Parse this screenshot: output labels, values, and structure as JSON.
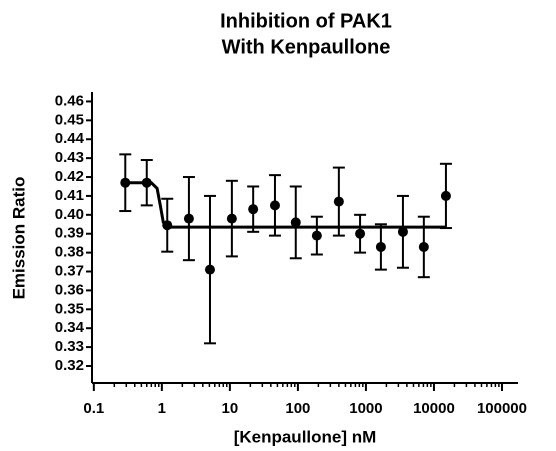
{
  "chart_data": {
    "type": "scatter",
    "title": [
      "Inhibition of PAK1",
      "With Kenpaullone"
    ],
    "x_label": "[Kenpaullone] nM",
    "y_label": "Emission  Ratio",
    "log_x": true,
    "color": "#000000",
    "x": [
      0.29,
      0.6,
      1.2,
      2.5,
      5.1,
      10.7,
      22,
      46,
      93,
      190,
      400,
      820,
      1660,
      3500,
      7100,
      15000
    ],
    "values": [
      0.417,
      0.417,
      0.3945,
      0.398,
      0.371,
      0.398,
      0.403,
      0.405,
      0.396,
      0.389,
      0.407,
      0.39,
      0.383,
      0.391,
      0.383,
      0.41
    ],
    "errors": [
      0.015,
      0.012,
      0.014,
      0.022,
      0.039,
      0.02,
      0.012,
      0.016,
      0.019,
      0.01,
      0.018,
      0.01,
      0.012,
      0.019,
      0.016,
      0.017
    ],
    "fit": {
      "x": [
        0.29,
        0.7,
        0.85,
        0.95,
        1.05,
        1.2,
        15000
      ],
      "values": [
        0.417,
        0.417,
        0.414,
        0.405,
        0.396,
        0.3935,
        0.3935
      ]
    },
    "xlim": [
      0.094,
      172000
    ],
    "ylim": [
      0.311,
      0.465
    ],
    "xticks": [
      0.1,
      1,
      10,
      100,
      1000,
      10000,
      100000
    ],
    "yticks": [
      0.32,
      0.33,
      0.34,
      0.35,
      0.36,
      0.37,
      0.38,
      0.39,
      {
        "value": 0.4,
        "label": "0.40"
      },
      0.41,
      0.42,
      0.43,
      0.44,
      0.45,
      0.46
    ]
  }
}
